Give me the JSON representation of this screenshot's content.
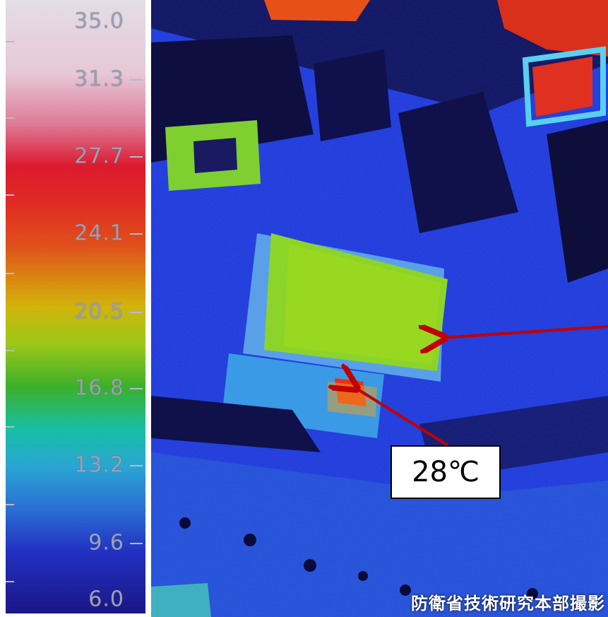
{
  "color_scale": {
    "ticks": [
      "35.0",
      "31.3",
      "27.7",
      "24.1",
      "20.5",
      "16.8",
      "13.2",
      "9.6",
      "6.0"
    ]
  },
  "annotations": {
    "temperature_label": "28℃"
  },
  "credit": "防衛省技術研究本部撮影",
  "colors": {
    "arrow": "#c00000",
    "hot": "#e8301a",
    "warm": "#9ad020",
    "cool": "#2460e0",
    "cold": "#0a0a60"
  }
}
